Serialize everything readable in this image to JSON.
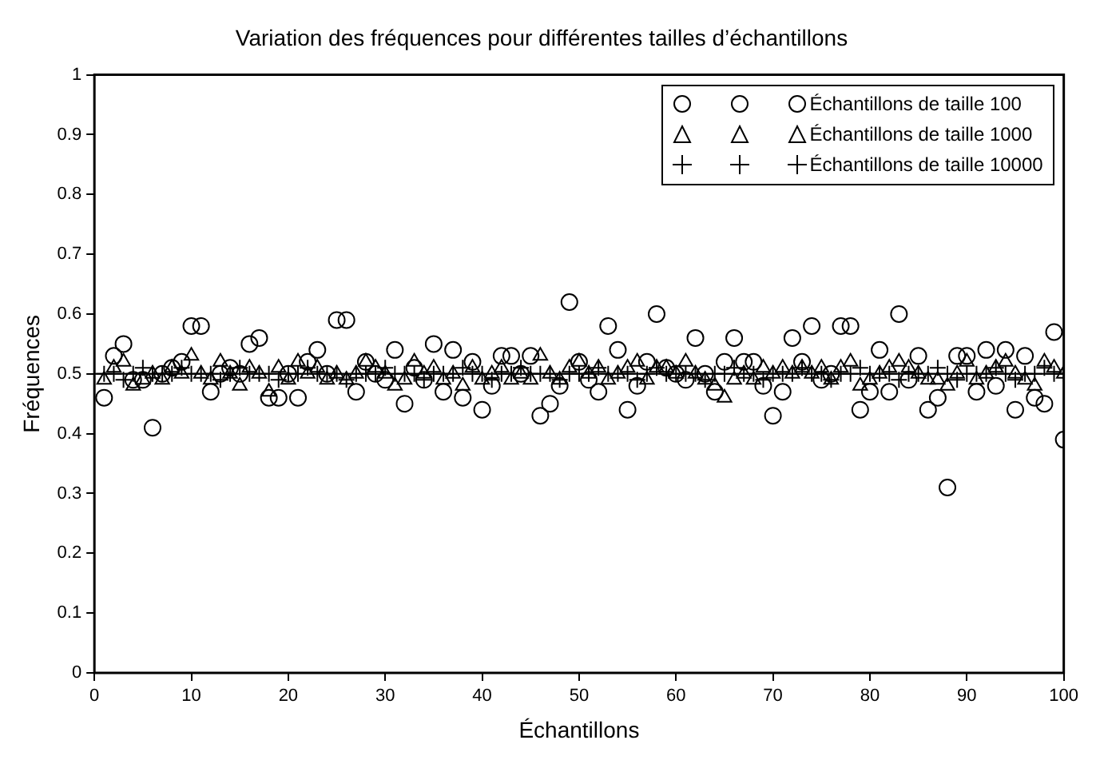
{
  "chart_data": {
    "type": "scatter",
    "title": "Variation des fréquences pour différentes tailles d’échantillons",
    "xlabel": "Échantillons",
    "ylabel": "Fréquences",
    "x": [
      1,
      2,
      3,
      4,
      5,
      6,
      7,
      8,
      9,
      10,
      11,
      12,
      13,
      14,
      15,
      16,
      17,
      18,
      19,
      20,
      21,
      22,
      23,
      24,
      25,
      26,
      27,
      28,
      29,
      30,
      31,
      32,
      33,
      34,
      35,
      36,
      37,
      38,
      39,
      40,
      41,
      42,
      43,
      44,
      45,
      46,
      47,
      48,
      49,
      50,
      51,
      52,
      53,
      54,
      55,
      56,
      57,
      58,
      59,
      60,
      61,
      62,
      63,
      64,
      65,
      66,
      67,
      68,
      69,
      70,
      71,
      72,
      73,
      74,
      75,
      76,
      77,
      78,
      79,
      80,
      81,
      82,
      83,
      84,
      85,
      86,
      87,
      88,
      89,
      90,
      91,
      92,
      93,
      94,
      95,
      96,
      97,
      98,
      99,
      100
    ],
    "series": [
      {
        "name": "Échantillons de taille 100",
        "color": "#000000",
        "marker": "circle",
        "values": [
          0.46,
          0.53,
          0.55,
          0.49,
          0.49,
          0.41,
          0.5,
          0.51,
          0.52,
          0.58,
          0.58,
          0.47,
          0.5,
          0.51,
          0.5,
          0.55,
          0.56,
          0.46,
          0.46,
          0.5,
          0.46,
          0.52,
          0.54,
          0.5,
          0.59,
          0.59,
          0.47,
          0.52,
          0.5,
          0.49,
          0.54,
          0.45,
          0.51,
          0.49,
          0.55,
          0.47,
          0.54,
          0.46,
          0.52,
          0.44,
          0.48,
          0.53,
          0.53,
          0.5,
          0.53,
          0.43,
          0.45,
          0.48,
          0.62,
          0.52,
          0.49,
          0.47,
          0.58,
          0.54,
          0.44,
          0.48,
          0.52,
          0.6,
          0.51,
          0.5,
          0.49,
          0.56,
          0.5,
          0.47,
          0.52,
          0.56,
          0.52,
          0.52,
          0.48,
          0.43,
          0.47,
          0.56,
          0.52,
          0.58,
          0.49,
          0.5,
          0.58,
          0.58,
          0.44,
          0.47,
          0.54,
          0.47,
          0.6,
          0.49,
          0.53,
          0.44,
          0.46,
          0.31,
          0.53,
          0.53,
          0.47,
          0.54,
          0.48,
          0.54,
          0.44,
          0.53,
          0.46,
          0.45,
          0.57,
          0.39
        ]
      },
      {
        "name": "Échantillons de taille 1000",
        "color": "#000000",
        "marker": "triangle",
        "values": [
          0.49,
          0.51,
          0.52,
          0.48,
          0.49,
          0.5,
          0.49,
          0.51,
          0.5,
          0.53,
          0.5,
          0.49,
          0.52,
          0.5,
          0.48,
          0.51,
          0.5,
          0.47,
          0.51,
          0.49,
          0.52,
          0.5,
          0.51,
          0.49,
          0.5,
          0.49,
          0.5,
          0.52,
          0.51,
          0.5,
          0.48,
          0.49,
          0.52,
          0.5,
          0.51,
          0.49,
          0.5,
          0.48,
          0.51,
          0.49,
          0.5,
          0.51,
          0.49,
          0.5,
          0.49,
          0.53,
          0.5,
          0.49,
          0.51,
          0.52,
          0.5,
          0.51,
          0.49,
          0.5,
          0.51,
          0.52,
          0.49,
          0.51,
          0.51,
          0.5,
          0.52,
          0.5,
          0.49,
          0.48,
          0.46,
          0.49,
          0.5,
          0.49,
          0.51,
          0.5,
          0.51,
          0.5,
          0.51,
          0.5,
          0.51,
          0.49,
          0.51,
          0.52,
          0.48,
          0.49,
          0.5,
          0.51,
          0.52,
          0.51,
          0.5,
          0.49,
          0.49,
          0.48,
          0.5,
          0.52,
          0.49,
          0.5,
          0.51,
          0.52,
          0.5,
          0.49,
          0.48,
          0.52,
          0.51,
          0.5
        ]
      },
      {
        "name": "Échantillons de taille 10000",
        "color": "#000000",
        "marker": "cross",
        "values": [
          0.5,
          0.5,
          0.49,
          0.5,
          0.51,
          0.5,
          0.5,
          0.5,
          0.51,
          0.5,
          0.5,
          0.5,
          0.49,
          0.5,
          0.51,
          0.5,
          0.5,
          0.5,
          0.49,
          0.5,
          0.5,
          0.51,
          0.5,
          0.5,
          0.5,
          0.49,
          0.5,
          0.5,
          0.5,
          0.51,
          0.5,
          0.5,
          0.5,
          0.49,
          0.5,
          0.5,
          0.5,
          0.51,
          0.5,
          0.5,
          0.49,
          0.5,
          0.5,
          0.51,
          0.5,
          0.5,
          0.5,
          0.49,
          0.5,
          0.5,
          0.5,
          0.51,
          0.5,
          0.5,
          0.5,
          0.49,
          0.5,
          0.51,
          0.5,
          0.5,
          0.5,
          0.5,
          0.49,
          0.5,
          0.5,
          0.51,
          0.5,
          0.5,
          0.49,
          0.5,
          0.5,
          0.5,
          0.51,
          0.5,
          0.5,
          0.49,
          0.5,
          0.5,
          0.51,
          0.5,
          0.5,
          0.5,
          0.49,
          0.5,
          0.5,
          0.5,
          0.51,
          0.5,
          0.49,
          0.5,
          0.5,
          0.5,
          0.51,
          0.5,
          0.49,
          0.5,
          0.5,
          0.51,
          0.5,
          0.5
        ]
      }
    ],
    "ref_lines": [
      {
        "axis": "y",
        "value": 0.5,
        "color": "#000000"
      }
    ],
    "xlim": [
      0,
      100
    ],
    "xticks": [
      0,
      10,
      20,
      30,
      40,
      50,
      60,
      70,
      80,
      90,
      100
    ],
    "ylim": [
      0,
      1
    ],
    "yticks": [
      0,
      0.1,
      0.2,
      0.3,
      0.4,
      0.5,
      0.6,
      0.7,
      0.8,
      0.9,
      1
    ],
    "grid": false,
    "legend": "top right"
  }
}
